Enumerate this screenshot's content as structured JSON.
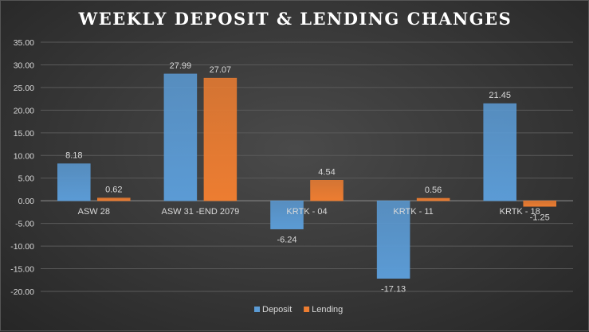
{
  "chart_data": {
    "type": "bar",
    "title": "WEEKLY DEPOSIT & LENDING CHANGES",
    "categories": [
      "ASW 28",
      "ASW 31 -END 2079",
      "KRTK - 04",
      "KRTK - 11",
      "KRTK - 18"
    ],
    "series": [
      {
        "name": "Deposit",
        "color": "#5b9bd5",
        "values": [
          8.18,
          27.99,
          -6.24,
          -17.13,
          21.45
        ],
        "labels": [
          "8.18",
          "27.99",
          "-6.24",
          "-17.13",
          "21.45"
        ]
      },
      {
        "name": "Lending",
        "color": "#ed7d31",
        "values": [
          0.62,
          27.07,
          4.54,
          0.56,
          -1.25
        ],
        "labels": [
          "0.62",
          "27.07",
          "4.54",
          "0.56",
          "-1.25"
        ]
      }
    ],
    "ylim": [
      -20,
      35
    ],
    "ytick_labels": [
      "35.00",
      "30.00",
      "25.00",
      "20.00",
      "15.00",
      "10.00",
      "5.00",
      "0.00",
      "-5.00",
      "-10.00",
      "-15.00",
      "-20.00"
    ],
    "grid": true,
    "legend": "bottom"
  }
}
